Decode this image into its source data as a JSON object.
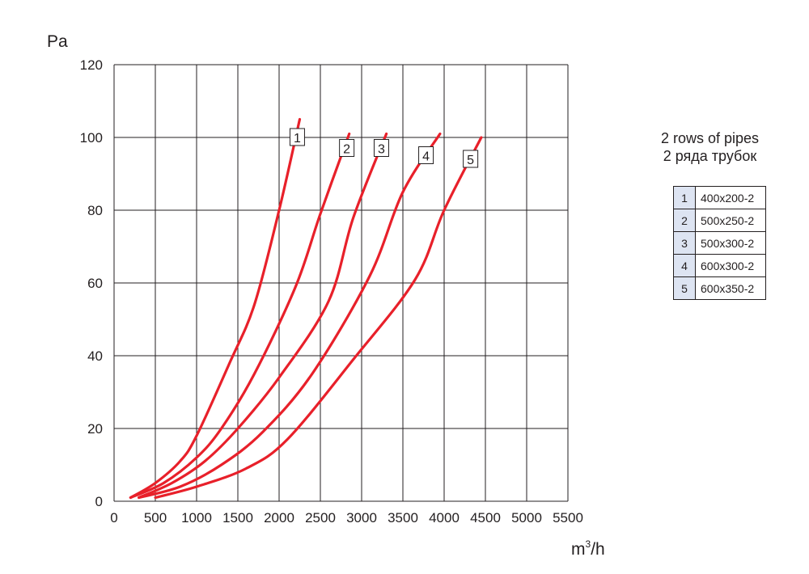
{
  "chart_data": {
    "type": "line",
    "title": "",
    "ylabel": "Pa",
    "xlabel_base": "m",
    "xlabel_sup": "3",
    "xlabel_tail": "/h",
    "xlim": [
      0,
      5500
    ],
    "ylim": [
      0,
      120
    ],
    "xticks": [
      0,
      500,
      1000,
      1500,
      2000,
      2500,
      3000,
      3500,
      4000,
      4500,
      5000,
      5500
    ],
    "yticks": [
      0,
      20,
      40,
      60,
      80,
      100,
      120
    ],
    "grid": true,
    "color": "#e8202a",
    "series": [
      {
        "name": "1",
        "x": [
          200,
          500,
          800,
          1000,
          1400,
          1700,
          2000,
          2250
        ],
        "y": [
          1,
          5,
          11,
          18,
          38,
          54,
          80,
          105
        ]
      },
      {
        "name": "2",
        "x": [
          200,
          600,
          1000,
          1300,
          1700,
          2200,
          2500,
          2850
        ],
        "y": [
          1,
          5,
          12,
          20,
          35,
          59,
          79,
          101
        ]
      },
      {
        "name": "3",
        "x": [
          300,
          700,
          1100,
          1500,
          2000,
          2600,
          2900,
          3300
        ],
        "y": [
          1,
          5,
          11,
          20,
          34,
          55,
          78,
          101
        ]
      },
      {
        "name": "4",
        "x": [
          300,
          800,
          1300,
          1800,
          2400,
          3100,
          3500,
          3950
        ],
        "y": [
          1,
          4,
          10,
          19,
          35,
          62,
          85,
          101
        ]
      },
      {
        "name": "5",
        "x": [
          500,
          1000,
          1600,
          2100,
          2900,
          3650,
          4000,
          4450
        ],
        "y": [
          1,
          4,
          9,
          17,
          39,
          61,
          80,
          100
        ]
      }
    ],
    "label_anchor_x": [
      2220,
      2820,
      3240,
      3780,
      4320
    ],
    "label_anchor_y": [
      100,
      97,
      97,
      95,
      94
    ]
  },
  "legend": {
    "title_en": "2 rows of pipes",
    "title_ru": "2 ряда трубок",
    "rows": [
      {
        "num": "1",
        "size": "400x200-2"
      },
      {
        "num": "2",
        "size": "500x250-2"
      },
      {
        "num": "3",
        "size": "500x300-2"
      },
      {
        "num": "4",
        "size": "600x300-2"
      },
      {
        "num": "5",
        "size": "600x350-2"
      }
    ]
  }
}
